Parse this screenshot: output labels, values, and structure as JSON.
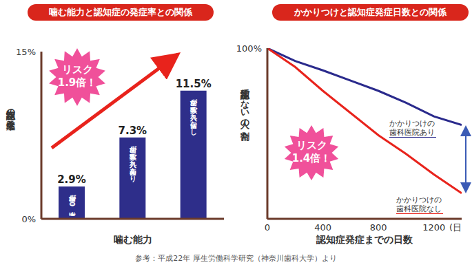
{
  "chart_data": [
    {
      "type": "bar",
      "title": "噛む能力と認知症の発症率との関係",
      "ylabel": "認知症の発症率",
      "xlabel": "噛む能力",
      "categories": [
        "歯が20本以上",
        "歯が数本で入れ歯あり",
        "歯が数本で入れ歯なし"
      ],
      "values": [
        2.9,
        7.3,
        11.5
      ],
      "value_labels": [
        "2.9%",
        "7.3%",
        "11.5%"
      ],
      "data_labels": true,
      "color": "#2e2e8a",
      "ylim": [
        0,
        15
      ],
      "yticks": [
        {
          "value": 0,
          "label": "0%"
        },
        {
          "value": 15,
          "label": "15%"
        }
      ],
      "grid": false,
      "annotation": [
        "リスク",
        "1.9倍！"
      ]
    },
    {
      "type": "line",
      "title": "かかりつけと認知症発症日数との関係",
      "ylabel": "認知症でない人の割合",
      "xlabel": "認知症発症までの日数",
      "xlabel_unit": "(日",
      "x": [
        0,
        200,
        400,
        600,
        800,
        1000,
        1200,
        1400
      ],
      "series": [
        {
          "name": "かかりつけの歯科医院あり",
          "color": "#2a2a8c",
          "values": [
            100,
            92.5,
            87,
            81,
            75,
            68,
            60,
            55
          ]
        },
        {
          "name": "かかりつけの歯科医院なし",
          "color": "#e8231c",
          "values": [
            100,
            89,
            75,
            62,
            49,
            38,
            26,
            15
          ]
        }
      ],
      "xlim": [
        0,
        1400
      ],
      "xticks": [
        0,
        400,
        800,
        1200
      ],
      "ylim": [
        0,
        100
      ],
      "yticks": [
        {
          "value": 100,
          "label": "100%"
        }
      ],
      "grid": false,
      "annotation": [
        "リスク",
        "1.4倍！"
      ]
    }
  ],
  "source": "参考：平成22年 厚生労働科学研究（神奈川歯科大学）より"
}
